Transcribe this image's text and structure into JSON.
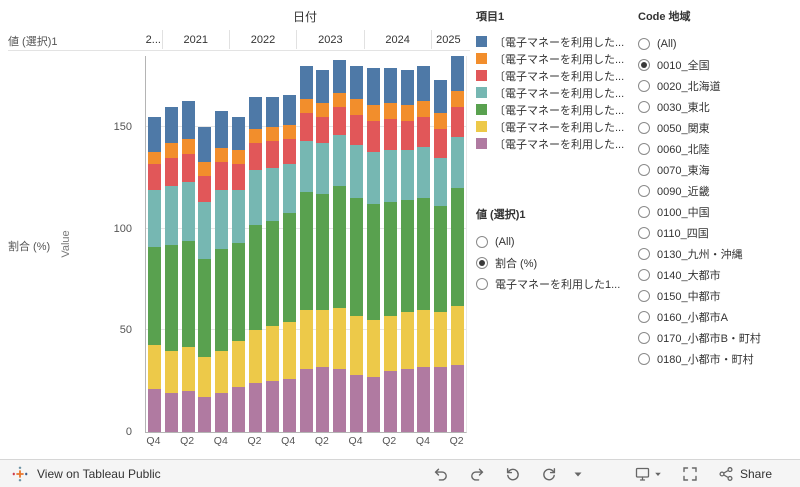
{
  "chart": {
    "date_header": "日付",
    "left_field_label": "値 (選択)1",
    "row_label": "割合 (%)",
    "y_axis_title": "Value"
  },
  "chart_data": {
    "type": "bar",
    "stacked": true,
    "stack_order": "bottom_to_top",
    "title": "日付",
    "ylabel": "Value",
    "ylim": [
      0,
      185
    ],
    "y_ticks": [
      0,
      50,
      100,
      150
    ],
    "grid": true,
    "year_groups": [
      {
        "label": "2...",
        "span": 1
      },
      {
        "label": "2021",
        "span": 4
      },
      {
        "label": "2022",
        "span": 4
      },
      {
        "label": "2023",
        "span": 4
      },
      {
        "label": "2024",
        "span": 4
      },
      {
        "label": "2025",
        "span": 2
      }
    ],
    "x": [
      "2020 Q4",
      "2021 Q1",
      "2021 Q2",
      "2021 Q3",
      "2021 Q4",
      "2022 Q1",
      "2022 Q2",
      "2022 Q3",
      "2022 Q4",
      "2023 Q1",
      "2023 Q2",
      "2023 Q3",
      "2023 Q4",
      "2024 Q1",
      "2024 Q2",
      "2024 Q3",
      "2024 Q4",
      "2025 Q1",
      "2025 Q2"
    ],
    "tick_labels": [
      "Q4",
      "",
      "Q2",
      "",
      "Q4",
      "",
      "Q2",
      "",
      "Q4",
      "",
      "Q2",
      "",
      "Q4",
      "",
      "Q2",
      "",
      "Q4",
      "",
      "Q2"
    ],
    "series": [
      {
        "name": "〔電子マネーを利用した...",
        "color": "#b07aa1",
        "values": [
          21,
          19,
          20,
          17,
          19,
          22,
          24,
          25,
          26,
          31,
          32,
          31,
          28,
          27,
          30,
          31,
          32,
          32,
          33
        ]
      },
      {
        "name": "〔電子マネーを利用した...",
        "color": "#edc949",
        "values": [
          22,
          21,
          22,
          20,
          21,
          23,
          26,
          27,
          28,
          29,
          28,
          30,
          29,
          28,
          27,
          28,
          28,
          27,
          29
        ]
      },
      {
        "name": "〔電子マネーを利用した...",
        "color": "#59a14f",
        "values": [
          48,
          52,
          52,
          48,
          50,
          48,
          52,
          52,
          54,
          58,
          57,
          60,
          58,
          57,
          56,
          55,
          55,
          52,
          58
        ]
      },
      {
        "name": "〔電子マネーを利用した...",
        "color": "#76b7b2",
        "values": [
          28,
          29,
          29,
          28,
          29,
          26,
          27,
          26,
          24,
          25,
          25,
          25,
          26,
          26,
          26,
          25,
          25,
          24,
          25
        ]
      },
      {
        "name": "〔電子マネーを利用した...",
        "color": "#e15759",
        "values": [
          13,
          14,
          14,
          13,
          14,
          13,
          13,
          13,
          12,
          14,
          13,
          14,
          15,
          15,
          15,
          14,
          15,
          14,
          15
        ]
      },
      {
        "name": "〔電子マネーを利用した...",
        "color": "#f28e2c",
        "values": [
          6,
          7,
          7,
          7,
          7,
          7,
          7,
          7,
          7,
          7,
          7,
          7,
          8,
          8,
          8,
          8,
          8,
          8,
          8
        ]
      },
      {
        "name": "〔電子マネーを利用した...",
        "color": "#4e79a7",
        "values": [
          17,
          18,
          19,
          17,
          18,
          16,
          16,
          15,
          15,
          16,
          16,
          16,
          16,
          18,
          17,
          17,
          17,
          16,
          17
        ]
      }
    ]
  },
  "legend": {
    "title": "項目1",
    "items": [
      {
        "label": "〔電子マネーを利用した...",
        "color": "#4e79a7"
      },
      {
        "label": "〔電子マネーを利用した...",
        "color": "#f28e2c"
      },
      {
        "label": "〔電子マネーを利用した...",
        "color": "#e15759"
      },
      {
        "label": "〔電子マネーを利用した...",
        "color": "#76b7b2"
      },
      {
        "label": "〔電子マネーを利用した...",
        "color": "#59a14f"
      },
      {
        "label": "〔電子マネーを利用した...",
        "color": "#edc949"
      },
      {
        "label": "〔電子マネーを利用した...",
        "color": "#b07aa1"
      }
    ]
  },
  "value_select": {
    "title": "値 (選択)1",
    "options": [
      {
        "label": "(All)",
        "selected": false
      },
      {
        "label": "割合 (%)",
        "selected": true
      },
      {
        "label": "電子マネーを利用した1...",
        "selected": false
      }
    ]
  },
  "region_select": {
    "title": "Code 地域",
    "options": [
      {
        "label": "(All)",
        "selected": false
      },
      {
        "label": "0010_全国",
        "selected": true
      },
      {
        "label": "0020_北海道",
        "selected": false
      },
      {
        "label": "0030_東北",
        "selected": false
      },
      {
        "label": "0050_関東",
        "selected": false
      },
      {
        "label": "0060_北陸",
        "selected": false
      },
      {
        "label": "0070_東海",
        "selected": false
      },
      {
        "label": "0090_近畿",
        "selected": false
      },
      {
        "label": "0100_中国",
        "selected": false
      },
      {
        "label": "0110_四国",
        "selected": false
      },
      {
        "label": "0130_九州・沖縄",
        "selected": false
      },
      {
        "label": "0140_大都市",
        "selected": false
      },
      {
        "label": "0150_中都市",
        "selected": false
      },
      {
        "label": "0160_小都市A",
        "selected": false
      },
      {
        "label": "0170_小都市B・町村",
        "selected": false
      },
      {
        "label": "0180_小都市・町村",
        "selected": false
      }
    ]
  },
  "toolbar": {
    "view_label": "View on Tableau Public",
    "share_label": "Share"
  }
}
